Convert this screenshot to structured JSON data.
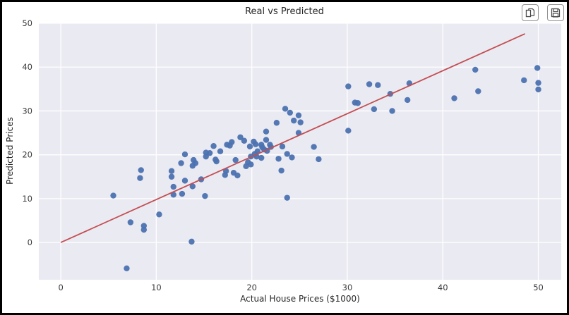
{
  "window": {
    "frame_color": "#000000",
    "background": "#ffffff"
  },
  "toolbar": {
    "copy_button": {
      "icon": "copy-icon"
    },
    "save_button": {
      "icon": "save-icon"
    }
  },
  "chart_data": {
    "type": "scatter",
    "title": "Real vs Predicted",
    "xlabel": "Actual House Prices ($1000)",
    "ylabel": "Predicted Prices",
    "xlim": [
      -2.3,
      52.4
    ],
    "ylim": [
      -8.5,
      50
    ],
    "xticks": [
      0,
      10,
      20,
      30,
      40,
      50
    ],
    "yticks": [
      0,
      10,
      20,
      30,
      40,
      50
    ],
    "grid": true,
    "legend": "none",
    "plot_background": "#eaeaf2",
    "gridline_color": "#ffffff",
    "tick_color": "#3a3a3a",
    "series": [
      {
        "name": "predicted-vs-actual",
        "type": "scatter",
        "color": "#4c72b0",
        "marker_radius": 4.2,
        "points": [
          [
            5.5,
            10.7
          ],
          [
            6.9,
            -5.9
          ],
          [
            7.3,
            4.6
          ],
          [
            8.7,
            3.8
          ],
          [
            8.7,
            2.9
          ],
          [
            10.3,
            6.4
          ],
          [
            13.7,
            0.2
          ],
          [
            8.4,
            16.5
          ],
          [
            8.3,
            14.7
          ],
          [
            11.6,
            16.3
          ],
          [
            11.6,
            15.0
          ],
          [
            11.8,
            12.7
          ],
          [
            11.8,
            10.9
          ],
          [
            12.7,
            11.1
          ],
          [
            13.0,
            14.1
          ],
          [
            13.8,
            12.8
          ],
          [
            13.0,
            20.1
          ],
          [
            12.6,
            18.1
          ],
          [
            13.9,
            18.8
          ],
          [
            13.8,
            17.5
          ],
          [
            14.1,
            18.1
          ],
          [
            14.7,
            14.4
          ],
          [
            15.1,
            10.6
          ],
          [
            15.2,
            19.6
          ],
          [
            15.2,
            20.5
          ],
          [
            15.6,
            20.4
          ],
          [
            16.0,
            22.0
          ],
          [
            16.2,
            18.9
          ],
          [
            16.3,
            18.5
          ],
          [
            16.7,
            20.8
          ],
          [
            17.4,
            22.3
          ],
          [
            17.7,
            22.1
          ],
          [
            17.9,
            22.9
          ],
          [
            18.8,
            24.0
          ],
          [
            19.2,
            23.2
          ],
          [
            18.3,
            18.8
          ],
          [
            18.1,
            15.9
          ],
          [
            17.3,
            16.3
          ],
          [
            17.2,
            15.4
          ],
          [
            18.5,
            15.3
          ],
          [
            19.8,
            21.9
          ],
          [
            20.2,
            23.0
          ],
          [
            20.4,
            22.4
          ],
          [
            21.5,
            25.3
          ],
          [
            21.5,
            23.4
          ],
          [
            21.0,
            22.3
          ],
          [
            21.1,
            21.7
          ],
          [
            21.3,
            21.2
          ],
          [
            21.6,
            20.9
          ],
          [
            21.9,
            22.3
          ],
          [
            22.0,
            21.8
          ],
          [
            20.6,
            20.8
          ],
          [
            20.3,
            20.2
          ],
          [
            19.9,
            19.6
          ],
          [
            20.5,
            19.6
          ],
          [
            21.0,
            19.3
          ],
          [
            19.6,
            18.3
          ],
          [
            19.4,
            17.4
          ],
          [
            19.9,
            17.8
          ],
          [
            22.8,
            19.1
          ],
          [
            23.1,
            16.4
          ],
          [
            24.9,
            25.0
          ],
          [
            23.2,
            21.9
          ],
          [
            23.7,
            20.2
          ],
          [
            24.2,
            19.4
          ],
          [
            26.5,
            21.8
          ],
          [
            27.0,
            19.0
          ],
          [
            22.6,
            27.3
          ],
          [
            23.5,
            30.5
          ],
          [
            24.0,
            29.6
          ],
          [
            24.9,
            29.0
          ],
          [
            24.4,
            27.8
          ],
          [
            25.1,
            27.4
          ],
          [
            23.7,
            10.2
          ],
          [
            30.8,
            31.9
          ],
          [
            31.1,
            31.8
          ],
          [
            32.8,
            30.4
          ],
          [
            34.7,
            30.0
          ],
          [
            36.3,
            32.5
          ],
          [
            30.1,
            25.5
          ],
          [
            30.1,
            35.6
          ],
          [
            32.3,
            36.1
          ],
          [
            33.2,
            35.9
          ],
          [
            34.5,
            33.9
          ],
          [
            36.5,
            36.3
          ],
          [
            43.4,
            39.4
          ],
          [
            43.7,
            34.5
          ],
          [
            41.2,
            32.9
          ],
          [
            49.9,
            39.8
          ],
          [
            48.5,
            37.0
          ],
          [
            50.0,
            36.4
          ],
          [
            50.0,
            34.9
          ]
        ]
      },
      {
        "name": "identity-line",
        "type": "line",
        "color": "#c44e52",
        "stroke_width": 1.8,
        "points": [
          [
            0,
            0
          ],
          [
            48.6,
            47.6
          ]
        ]
      }
    ]
  }
}
